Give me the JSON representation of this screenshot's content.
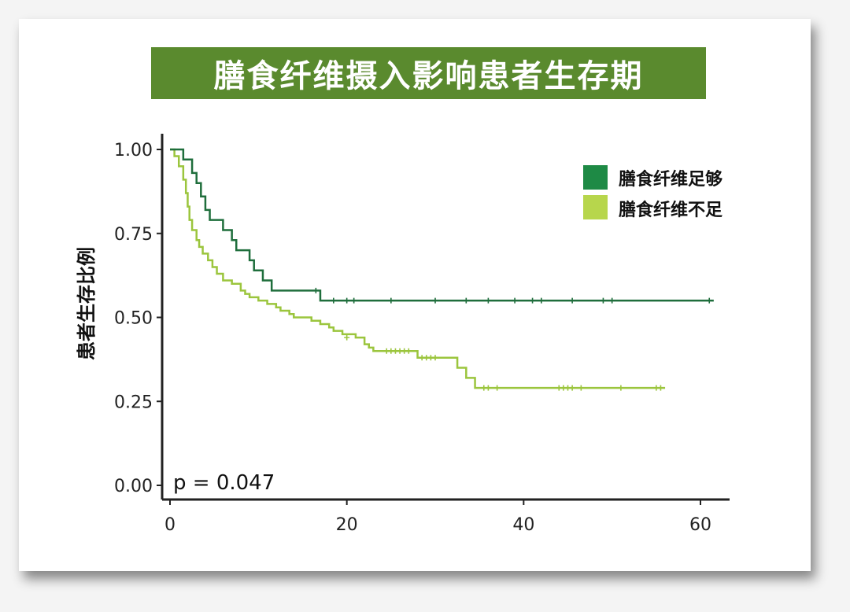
{
  "chart_data": {
    "type": "line",
    "title": "膳食纤维摄入影响患者生存期",
    "xlabel": "",
    "ylabel": "患者生存比例",
    "xlim": [
      0,
      62
    ],
    "ylim": [
      0,
      1
    ],
    "x_ticks": [
      "0",
      "20",
      "40",
      "60"
    ],
    "y_ticks": [
      "0.00",
      "0.25",
      "0.50",
      "0.75",
      "1.00"
    ],
    "annotation": "p = 0.047",
    "legend_position": "top-right",
    "grid": false,
    "series": [
      {
        "name": "膳食纤维足够",
        "color": "#1f6e3c",
        "legend_color": "#1e8a45",
        "steps": [
          [
            0,
            1.0
          ],
          [
            1.5,
            0.97
          ],
          [
            2.5,
            0.93
          ],
          [
            3,
            0.9
          ],
          [
            3.5,
            0.86
          ],
          [
            4,
            0.82
          ],
          [
            4.5,
            0.79
          ],
          [
            6,
            0.76
          ],
          [
            7,
            0.73
          ],
          [
            7.5,
            0.7
          ],
          [
            9,
            0.67
          ],
          [
            9.5,
            0.64
          ],
          [
            10.5,
            0.61
          ],
          [
            11.5,
            0.58
          ],
          [
            17,
            0.55
          ],
          [
            61.5,
            0.55
          ]
        ],
        "censors": [
          [
            16.5,
            0.58
          ],
          [
            18.5,
            0.55
          ],
          [
            20,
            0.55
          ],
          [
            20.8,
            0.55
          ],
          [
            25,
            0.55
          ],
          [
            30,
            0.55
          ],
          [
            33.5,
            0.55
          ],
          [
            36,
            0.55
          ],
          [
            39,
            0.55
          ],
          [
            41,
            0.55
          ],
          [
            42,
            0.55
          ],
          [
            45.5,
            0.55
          ],
          [
            49,
            0.55
          ],
          [
            50,
            0.55
          ],
          [
            61,
            0.55
          ]
        ]
      },
      {
        "name": "膳食纤维不足",
        "color": "#9bc53d",
        "legend_color": "#b7d64c",
        "steps": [
          [
            0,
            1.0
          ],
          [
            0.5,
            0.98
          ],
          [
            1,
            0.95
          ],
          [
            1.5,
            0.91
          ],
          [
            1.8,
            0.87
          ],
          [
            2,
            0.83
          ],
          [
            2.2,
            0.79
          ],
          [
            2.5,
            0.76
          ],
          [
            3,
            0.73
          ],
          [
            3.3,
            0.71
          ],
          [
            3.7,
            0.69
          ],
          [
            4.3,
            0.67
          ],
          [
            4.8,
            0.65
          ],
          [
            5.3,
            0.63
          ],
          [
            6,
            0.61
          ],
          [
            7,
            0.6
          ],
          [
            8,
            0.58
          ],
          [
            8.5,
            0.57
          ],
          [
            9,
            0.56
          ],
          [
            10,
            0.55
          ],
          [
            11,
            0.54
          ],
          [
            12,
            0.53
          ],
          [
            12.5,
            0.52
          ],
          [
            13.5,
            0.51
          ],
          [
            14,
            0.5
          ],
          [
            16,
            0.49
          ],
          [
            17,
            0.48
          ],
          [
            18,
            0.47
          ],
          [
            18.5,
            0.46
          ],
          [
            19.5,
            0.45
          ],
          [
            21,
            0.44
          ],
          [
            22,
            0.42
          ],
          [
            22.5,
            0.41
          ],
          [
            23,
            0.4
          ],
          [
            28,
            0.38
          ],
          [
            32.5,
            0.35
          ],
          [
            33.5,
            0.32
          ],
          [
            34.5,
            0.29
          ],
          [
            56,
            0.29
          ]
        ],
        "censors": [
          [
            20,
            0.44
          ],
          [
            24.5,
            0.4
          ],
          [
            25,
            0.4
          ],
          [
            25.5,
            0.4
          ],
          [
            26,
            0.4
          ],
          [
            26.5,
            0.4
          ],
          [
            27,
            0.4
          ],
          [
            28.5,
            0.38
          ],
          [
            29,
            0.38
          ],
          [
            29.5,
            0.38
          ],
          [
            30,
            0.38
          ],
          [
            35.5,
            0.29
          ],
          [
            36,
            0.29
          ],
          [
            37,
            0.29
          ],
          [
            44,
            0.29
          ],
          [
            44.5,
            0.29
          ],
          [
            45,
            0.29
          ],
          [
            45.5,
            0.29
          ],
          [
            46.5,
            0.29
          ],
          [
            51,
            0.29
          ],
          [
            55,
            0.29
          ],
          [
            55.5,
            0.29
          ]
        ]
      }
    ]
  }
}
